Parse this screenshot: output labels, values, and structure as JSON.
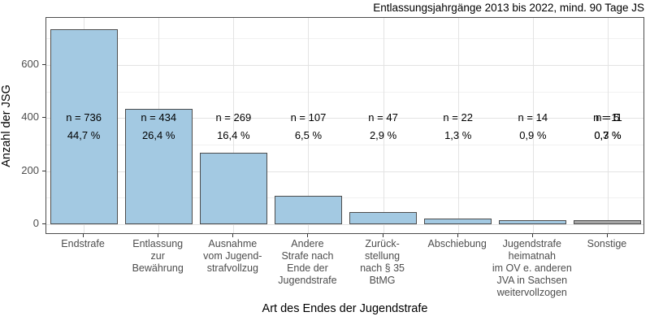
{
  "chart_data": {
    "type": "bar",
    "title": "Entlassungsjahrgänge 2013 bis 2022, mind. 90 Tage JS",
    "xlabel": "Art des Endes der Jugendstrafe",
    "ylabel": "Anzahl der JSG",
    "ylim": [
      0,
      775
    ],
    "yticks": [
      0,
      200,
      400,
      600
    ],
    "yticks_minor": [
      100,
      300,
      500,
      700
    ],
    "grid": true,
    "legend_position": "none",
    "colors": {
      "bar_blue_fill": "#a3c9e2",
      "bar_gray_fill": "#a6a6a6",
      "bar_border": "#4d4d4d",
      "grid_major": "#e3e3e3",
      "grid_minor": "#f1f1f1",
      "panel_border": "#4d4d4d",
      "axis_text": "#4d4d4d",
      "annotation_text": "#000000"
    },
    "categories": [
      {
        "tick_label_lines": [
          "Endstrafe"
        ],
        "value": 736,
        "color_key": "blue",
        "annotations": [
          {
            "line1": "n = 736",
            "line2": "44,7 %"
          }
        ]
      },
      {
        "tick_label_lines": [
          "Entlassung",
          "zur",
          "Bewährung"
        ],
        "value": 434,
        "color_key": "blue",
        "annotations": [
          {
            "line1": "n = 434",
            "line2": "26,4 %"
          }
        ]
      },
      {
        "tick_label_lines": [
          "Ausnahme",
          "vom Jugend-",
          "strafvollzug"
        ],
        "value": 269,
        "color_key": "blue",
        "annotations": [
          {
            "line1": "n = 269",
            "line2": "16,4 %"
          }
        ]
      },
      {
        "tick_label_lines": [
          "Andere",
          "Strafe nach",
          "Ende der",
          "Jugendstrafe"
        ],
        "value": 107,
        "color_key": "blue",
        "annotations": [
          {
            "line1": "n = 107",
            "line2": "6,5 %"
          }
        ]
      },
      {
        "tick_label_lines": [
          "Zurück-",
          "stellung",
          "nach § 35",
          "BtMG"
        ],
        "value": 47,
        "color_key": "blue",
        "annotations": [
          {
            "line1": "n = 47",
            "line2": "2,9 %"
          }
        ]
      },
      {
        "tick_label_lines": [
          "Abschiebung"
        ],
        "value": 22,
        "color_key": "blue",
        "annotations": [
          {
            "line1": "n = 22",
            "line2": "1,3 %"
          }
        ]
      },
      {
        "tick_label_lines": [
          "Jugendstrafe",
          "heimatnah",
          "im OV e. anderen",
          "JVA in Sachsen",
          "weitervollzogen"
        ],
        "value": 14,
        "color_key": "blue",
        "annotations": [
          {
            "line1": "n = 14",
            "line2": "0,9 %"
          }
        ]
      },
      {
        "tick_label_lines": [
          "Sonstige"
        ],
        "value": 16,
        "color_key": "gray",
        "annotations": [
          {
            "line1": "n = 11",
            "line2": "0,7 %"
          },
          {
            "line1": "n = 5",
            "line2": "0,3 %"
          }
        ]
      }
    ]
  }
}
